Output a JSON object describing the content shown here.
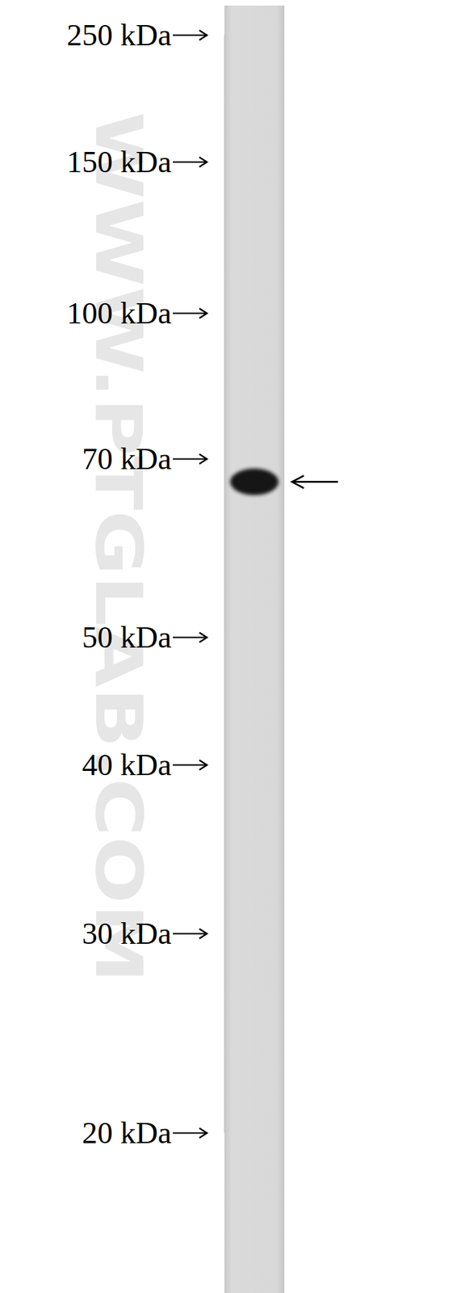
{
  "chart_data": {
    "type": "western_blot",
    "watermark": "WWW.PTGLAB.COM",
    "categories": [
      null
    ],
    "values": [
      67
    ],
    "log": "y",
    "ylim": [
      20,
      250
    ],
    "yticks": [
      {
        "value": 250,
        "label": "250 kDa"
      },
      {
        "value": 150,
        "label": "150 kDa"
      },
      {
        "value": 100,
        "label": "100 kDa"
      },
      {
        "value": 70,
        "label": "70 kDa"
      },
      {
        "value": 50,
        "label": "50 kDa"
      },
      {
        "value": 40,
        "label": "40 kDa"
      },
      {
        "value": 30,
        "label": "30 kDa"
      },
      {
        "value": 20,
        "label": "20 kDa"
      }
    ]
  }
}
